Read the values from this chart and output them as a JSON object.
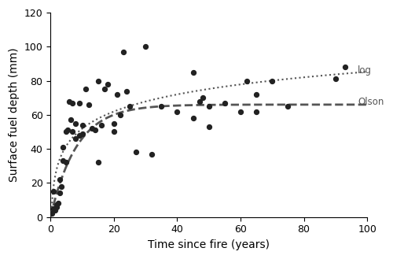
{
  "scatter_x": [
    0.5,
    1,
    1,
    1.5,
    2,
    2,
    2.5,
    3,
    3,
    3.5,
    4,
    4,
    5,
    5,
    5.5,
    6,
    6.5,
    7,
    7,
    8,
    8,
    9,
    9,
    10,
    10,
    11,
    12,
    13,
    14,
    15,
    15,
    16,
    17,
    18,
    20,
    20,
    21,
    22,
    23,
    24,
    25,
    27,
    30,
    32,
    35,
    40,
    45,
    45,
    47,
    48,
    50,
    50,
    55,
    60,
    62,
    65,
    65,
    70,
    75,
    90,
    93
  ],
  "scatter_y": [
    2,
    5,
    15,
    4,
    6,
    7,
    8,
    14,
    22,
    18,
    33,
    41,
    50,
    32,
    51,
    68,
    57,
    50,
    67,
    46,
    55,
    48,
    67,
    54,
    49,
    75,
    66,
    52,
    51,
    80,
    32,
    54,
    75,
    78,
    55,
    50,
    72,
    60,
    97,
    74,
    65,
    38,
    100,
    37,
    65,
    62,
    85,
    58,
    68,
    70,
    65,
    53,
    67,
    62,
    80,
    62,
    72,
    80,
    65,
    81,
    88
  ],
  "log_label": "log",
  "olson_label": "Olson",
  "log_params": {
    "a": 14.5,
    "b": 18.5
  },
  "olson_params": {
    "A": 66.0,
    "k": 0.12
  },
  "xlabel": "Time since fire (years)",
  "ylabel": "Surface fuel depth (mm)",
  "xlim": [
    0,
    100
  ],
  "ylim": [
    0,
    120
  ],
  "xticks": [
    0,
    20,
    40,
    60,
    80,
    100
  ],
  "yticks": [
    0,
    20,
    40,
    60,
    80,
    100,
    120
  ],
  "scatter_color": "#222222",
  "scatter_size": 18,
  "line_color": "#555555",
  "bg_color": "#ffffff"
}
